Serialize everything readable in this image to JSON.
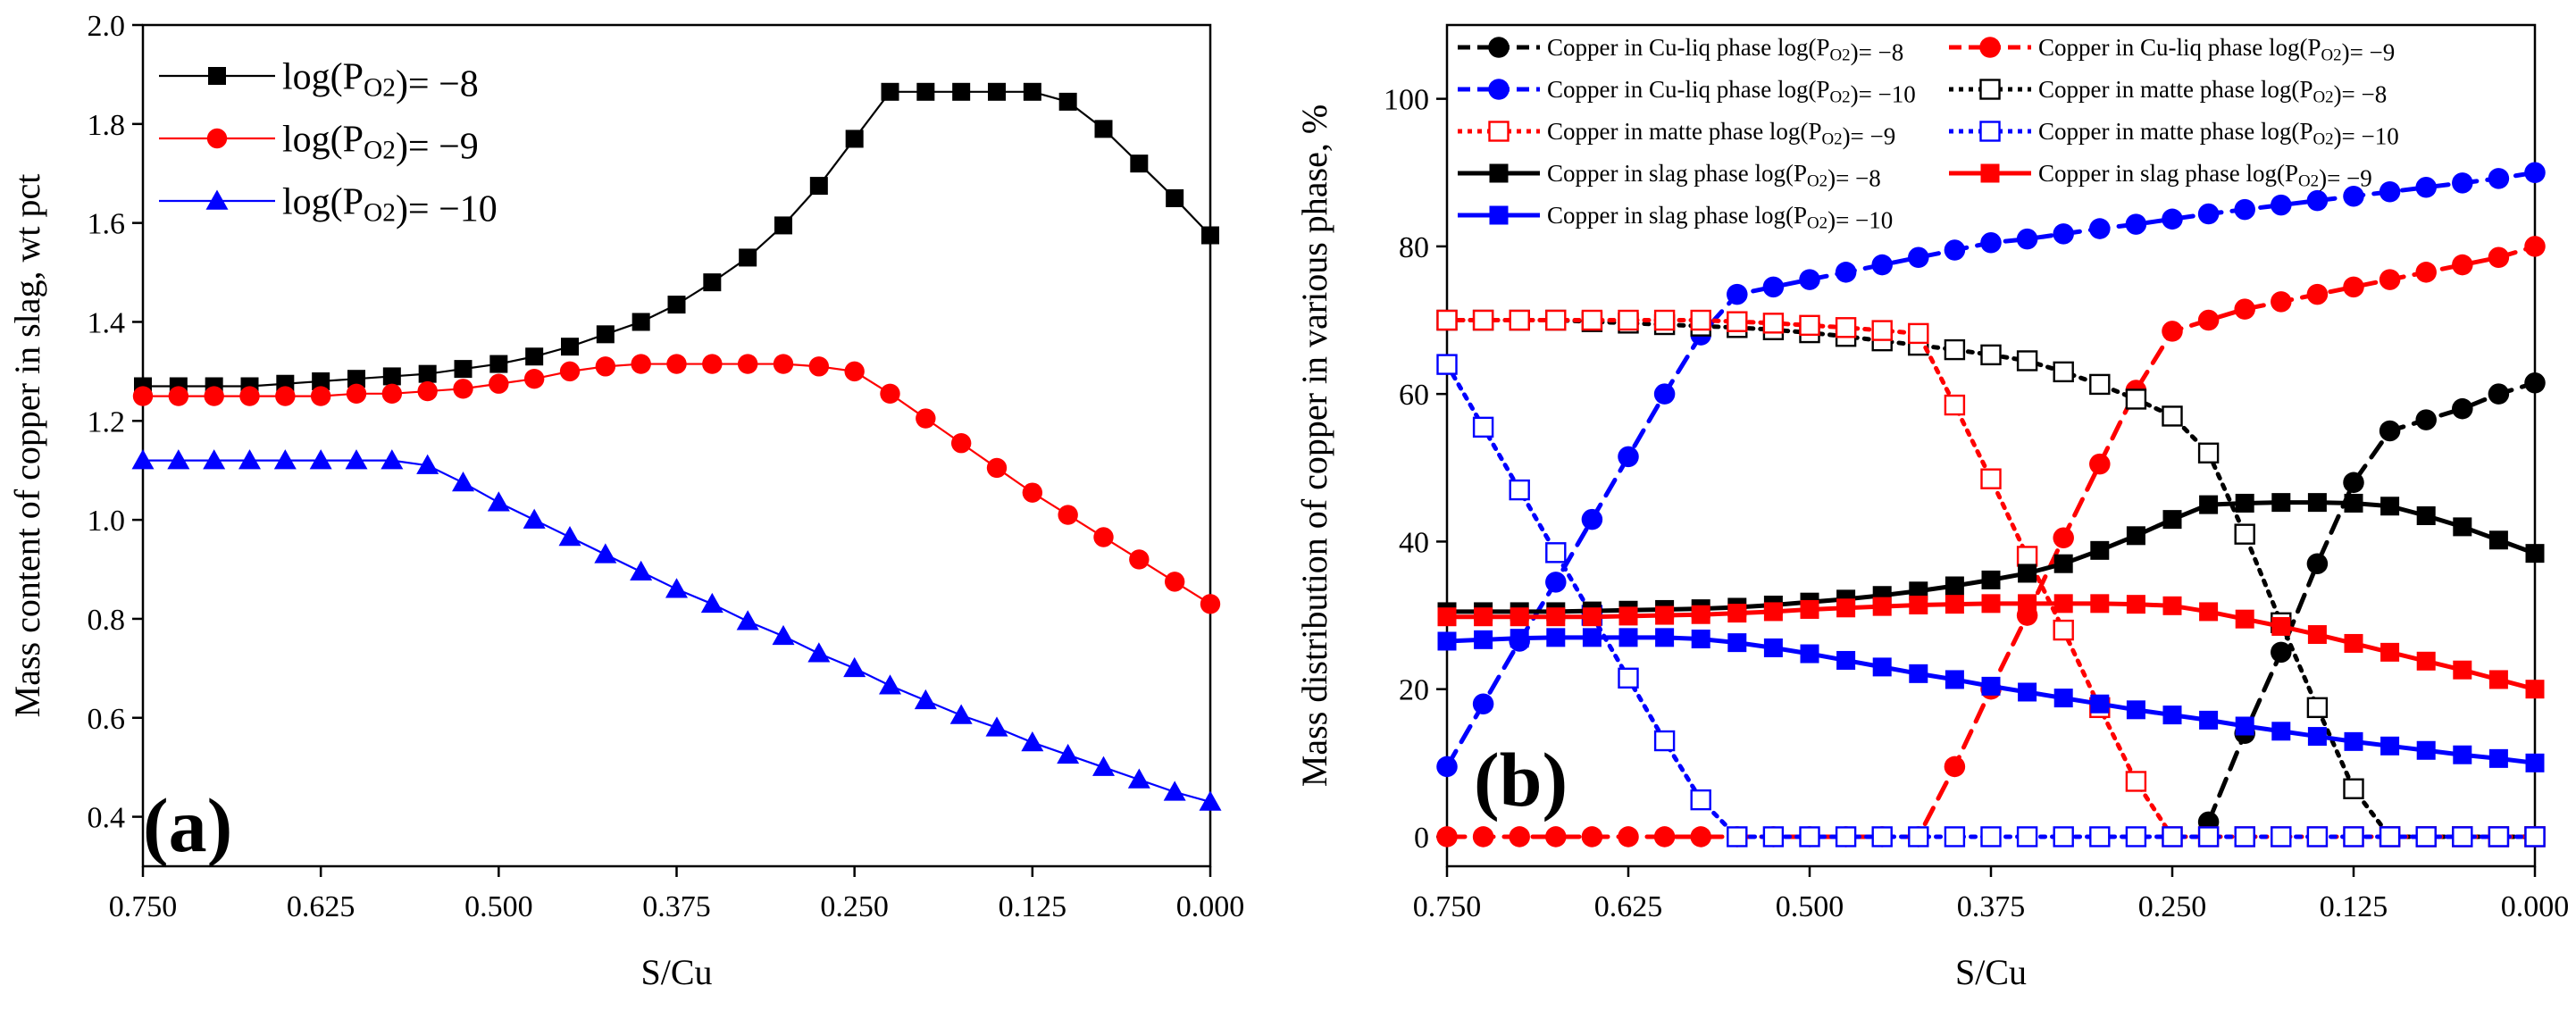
{
  "chart_data": [
    {
      "type": "line",
      "panel_label": "(a)",
      "xlabel": "S/Cu",
      "ylabel": "Mass content of copper in slag, wt pct",
      "xlim": [
        0.75,
        0.0
      ],
      "ylim": [
        0.3,
        2.0
      ],
      "x_ticks": [
        "0.750",
        "0.625",
        "0.500",
        "0.375",
        "0.250",
        "0.125",
        "0.000"
      ],
      "y_ticks": [
        "0.4",
        "0.6",
        "0.8",
        "1.0",
        "1.2",
        "1.4",
        "1.6",
        "1.8",
        "2.0"
      ],
      "x": [
        0.75,
        0.725,
        0.7,
        0.675,
        0.65,
        0.625,
        0.6,
        0.575,
        0.55,
        0.525,
        0.5,
        0.475,
        0.45,
        0.425,
        0.4,
        0.375,
        0.35,
        0.325,
        0.3,
        0.275,
        0.25,
        0.225,
        0.2,
        0.175,
        0.15,
        0.125,
        0.1,
        0.075,
        0.05,
        0.025,
        0.0
      ],
      "legend_position": "top-left",
      "series": [
        {
          "name": "log(P_O2)= −8",
          "color": "#000000",
          "marker": "square",
          "values": [
            1.27,
            1.27,
            1.27,
            1.27,
            1.275,
            1.28,
            1.285,
            1.29,
            1.295,
            1.305,
            1.315,
            1.33,
            1.35,
            1.375,
            1.4,
            1.435,
            1.48,
            1.53,
            1.595,
            1.675,
            1.77,
            1.865,
            1.865,
            1.865,
            1.865,
            1.865,
            1.845,
            1.79,
            1.72,
            1.65,
            1.575
          ]
        },
        {
          "name": "log(P_O2)= −9",
          "color": "#ff0000",
          "marker": "circle",
          "values": [
            1.25,
            1.25,
            1.25,
            1.25,
            1.25,
            1.25,
            1.255,
            1.255,
            1.26,
            1.265,
            1.275,
            1.285,
            1.3,
            1.31,
            1.315,
            1.315,
            1.315,
            1.315,
            1.315,
            1.31,
            1.3,
            1.255,
            1.205,
            1.155,
            1.105,
            1.055,
            1.01,
            0.965,
            0.92,
            0.875,
            0.83
          ]
        },
        {
          "name": "log(P_O2)= −10",
          "color": "#0000ff",
          "marker": "triangle",
          "values": [
            1.12,
            1.12,
            1.12,
            1.12,
            1.12,
            1.12,
            1.12,
            1.12,
            1.11,
            1.075,
            1.035,
            1.0,
            0.965,
            0.93,
            0.895,
            0.86,
            0.83,
            0.795,
            0.765,
            0.73,
            0.7,
            0.665,
            0.635,
            0.605,
            0.58,
            0.55,
            0.525,
            0.5,
            0.475,
            0.45,
            0.43
          ]
        }
      ]
    },
    {
      "type": "line",
      "panel_label": "(b)",
      "xlabel": "S/Cu",
      "ylabel": "Mass distribution of copper in various phase, %",
      "xlim": [
        0.75,
        0.0
      ],
      "ylim": [
        -4,
        110
      ],
      "x_ticks": [
        "0.750",
        "0.625",
        "0.500",
        "0.375",
        "0.250",
        "0.125",
        "0.000"
      ],
      "y_ticks": [
        "0",
        "20",
        "40",
        "60",
        "80",
        "100"
      ],
      "x": [
        0.75,
        0.725,
        0.7,
        0.675,
        0.65,
        0.625,
        0.6,
        0.575,
        0.55,
        0.525,
        0.5,
        0.475,
        0.45,
        0.425,
        0.4,
        0.375,
        0.35,
        0.325,
        0.3,
        0.275,
        0.25,
        0.225,
        0.2,
        0.175,
        0.15,
        0.125,
        0.1,
        0.075,
        0.05,
        0.025,
        0.0
      ],
      "legend_position": "top",
      "series": [
        {
          "name": "Copper in Cu-liq phase log(P_O2)= −8",
          "color": "#000000",
          "marker": "circle-filled",
          "line": "dashed",
          "values": [
            null,
            null,
            null,
            null,
            null,
            null,
            null,
            null,
            null,
            null,
            null,
            null,
            null,
            null,
            null,
            null,
            null,
            null,
            null,
            null,
            null,
            2,
            14,
            25,
            37,
            48,
            55,
            56.5,
            58,
            60,
            61.5
          ]
        },
        {
          "name": "Copper in Cu-liq phase log(P_O2)= −9",
          "color": "#ff0000",
          "marker": "circle-filled",
          "line": "dashed",
          "values": [
            0,
            0,
            0,
            0,
            0,
            0,
            0,
            0,
            0,
            0,
            0,
            0,
            0,
            0,
            9.5,
            20,
            30,
            40.5,
            50.5,
            60.5,
            68.5,
            70,
            71.5,
            72.5,
            73.5,
            74.5,
            75.5,
            76.5,
            77.5,
            78.5,
            80
          ]
        },
        {
          "name": "Copper in Cu-liq phase log(P_O2)= −10",
          "color": "#0000ff",
          "marker": "circle-filled",
          "line": "dashed",
          "values": [
            9.5,
            18,
            26.5,
            34.5,
            43,
            51.5,
            60,
            68,
            73.5,
            74.5,
            75.5,
            76.5,
            77.5,
            78.5,
            79.5,
            80.5,
            81,
            81.7,
            82.4,
            83,
            83.7,
            84.4,
            85,
            85.6,
            86.2,
            86.8,
            87.4,
            88,
            88.6,
            89.2,
            90
          ]
        },
        {
          "name": "Copper in matte phase log(P_O2)= −8",
          "color": "#000000",
          "marker": "square-open",
          "line": "dotted",
          "values": [
            70,
            70,
            70,
            70,
            69.8,
            69.6,
            69.4,
            69.2,
            69,
            68.7,
            68.3,
            67.8,
            67.2,
            66.6,
            66,
            65.3,
            64.5,
            63,
            61.3,
            59.3,
            57,
            52,
            41,
            29,
            17.5,
            6.5,
            0,
            0,
            0,
            0,
            0
          ]
        },
        {
          "name": "Copper in matte phase log(P_O2)= −9",
          "color": "#ff0000",
          "marker": "square-open",
          "line": "dotted",
          "values": [
            70,
            70,
            70,
            70,
            70,
            70,
            70,
            70,
            69.8,
            69.6,
            69.3,
            69,
            68.6,
            68.2,
            58.5,
            48.5,
            38,
            28,
            17.5,
            7.5,
            0,
            0,
            0,
            0,
            0,
            0,
            0,
            0,
            0,
            0,
            0
          ]
        },
        {
          "name": "Copper in matte phase log(P_O2)= −10",
          "color": "#0000ff",
          "marker": "square-open",
          "line": "dotted",
          "values": [
            64,
            55.5,
            47,
            38.5,
            30,
            21.5,
            13,
            5,
            0,
            0,
            0,
            0,
            0,
            0,
            0,
            0,
            0,
            0,
            0,
            0,
            0,
            0,
            0,
            0,
            0,
            0,
            0,
            0,
            0,
            0,
            0
          ]
        },
        {
          "name": "Copper in slag phase log(P_O2)= −8",
          "color": "#000000",
          "marker": "square-filled",
          "line": "solid",
          "values": [
            30.5,
            30.5,
            30.5,
            30.5,
            30.6,
            30.7,
            30.8,
            30.9,
            31.1,
            31.4,
            31.8,
            32.2,
            32.7,
            33.3,
            34,
            34.8,
            35.7,
            37,
            38.8,
            40.8,
            43,
            45,
            45.2,
            45.3,
            45.3,
            45.2,
            44.8,
            43.5,
            42,
            40.2,
            38.4
          ]
        },
        {
          "name": "Copper in slag phase log(P_O2)= −9",
          "color": "#ff0000",
          "marker": "square-filled",
          "line": "solid",
          "values": [
            29.8,
            29.8,
            29.8,
            29.8,
            29.8,
            29.9,
            30,
            30.1,
            30.3,
            30.5,
            30.8,
            31,
            31.2,
            31.4,
            31.5,
            31.6,
            31.6,
            31.6,
            31.6,
            31.5,
            31.3,
            30.5,
            29.5,
            28.5,
            27.4,
            26.2,
            25,
            23.8,
            22.6,
            21.3,
            20
          ]
        },
        {
          "name": "Copper in slag phase log(P_O2)= −10",
          "color": "#0000ff",
          "marker": "square-filled",
          "line": "solid",
          "values": [
            26.5,
            26.7,
            26.9,
            27,
            27,
            27,
            27,
            26.8,
            26.3,
            25.6,
            24.8,
            23.9,
            23,
            22.1,
            21.3,
            20.4,
            19.6,
            18.8,
            18,
            17.2,
            16.5,
            15.8,
            15,
            14.3,
            13.6,
            12.9,
            12.3,
            11.7,
            11.1,
            10.6,
            10
          ]
        }
      ]
    }
  ]
}
